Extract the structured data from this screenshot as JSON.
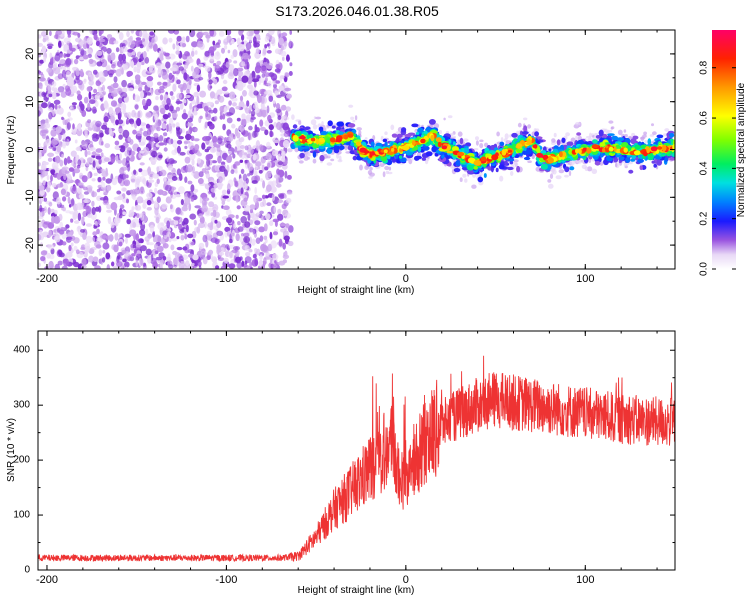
{
  "title": "S173.2026.046.01.38.R05",
  "chart_data": [
    {
      "type": "heatmap",
      "xlabel": "Height of straight line (km)",
      "ylabel": "Frequency (Hz)",
      "xlim": [
        -205,
        150
      ],
      "ylim": [
        -25,
        25
      ],
      "xticks": [
        -200,
        -100,
        0,
        100
      ],
      "yticks": [
        -20,
        -10,
        0,
        10,
        20
      ],
      "noise_region": [
        -205,
        -64
      ],
      "ridge": {
        "x": [
          -63,
          -50,
          -40,
          -30,
          -25,
          -20,
          -10,
          0,
          10,
          15,
          20,
          30,
          40,
          50,
          60,
          65,
          70,
          75,
          80,
          90,
          100,
          110,
          120,
          130,
          140,
          150
        ],
        "freq": [
          2.5,
          1.5,
          2.0,
          3.0,
          0.0,
          -1.0,
          -0.5,
          0.5,
          2.0,
          3.0,
          1.0,
          -1.0,
          -3.0,
          -1.5,
          0.0,
          1.0,
          2.0,
          -1.5,
          -2.0,
          -1.0,
          0.0,
          0.5,
          0.0,
          -0.5,
          0.0,
          0.5
        ]
      },
      "colorbar": {
        "label": "Normalized spectral amplitude",
        "ticks": [
          0.0,
          0.2,
          0.4,
          0.6,
          0.8
        ],
        "tick_labels": [
          "0.0",
          "0.2",
          "0.4",
          "0.6",
          "0.8"
        ],
        "range": [
          0,
          0.95
        ]
      }
    },
    {
      "type": "line",
      "xlabel": "Height of straight line (km)",
      "ylabel": "SNR (10 * v/v)",
      "xlim": [
        -205,
        150
      ],
      "ylim": [
        0,
        435
      ],
      "xticks": [
        -200,
        -100,
        0,
        100
      ],
      "yticks": [
        0,
        100,
        200,
        300,
        400
      ],
      "color": "#ee3333",
      "envelope": {
        "x": [
          -205,
          -70,
          -60,
          -50,
          -40,
          -30,
          -20,
          -10,
          0,
          10,
          20,
          30,
          40,
          50,
          60,
          70,
          80,
          90,
          100,
          110,
          120,
          130,
          140,
          150
        ],
        "y": [
          22,
          22,
          25,
          60,
          110,
          145,
          185,
          230,
          150,
          235,
          265,
          285,
          300,
          310,
          305,
          300,
          295,
          290,
          285,
          280,
          275,
          272,
          270,
          268
        ]
      }
    }
  ]
}
